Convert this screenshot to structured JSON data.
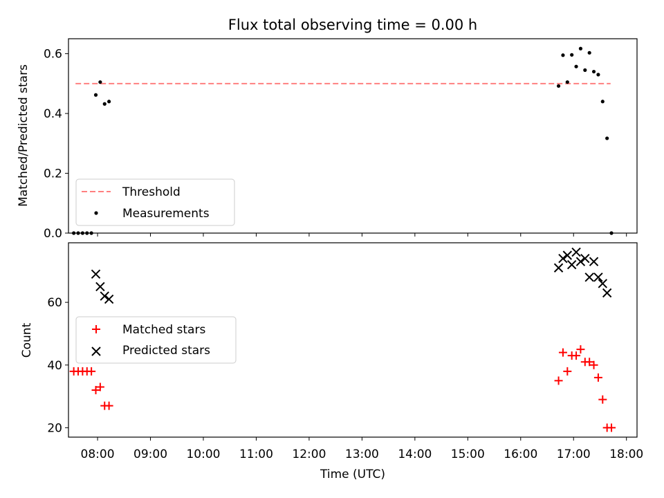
{
  "chart_data": [
    {
      "type": "scatter",
      "title": "Flux total observing time = 0.00 h",
      "xlabel": "",
      "ylabel": "Matched/Predicted stars",
      "ylim": [
        0,
        0.65
      ],
      "xlim": [
        "07:27",
        "18:12"
      ],
      "x_ticks": [
        "08:00",
        "09:00",
        "10:00",
        "11:00",
        "12:00",
        "13:00",
        "14:00",
        "15:00",
        "16:00",
        "17:00",
        "18:00"
      ],
      "y_ticks": [
        "0.0",
        "0.2",
        "0.4",
        "0.6"
      ],
      "y_tick_values": [
        0,
        0.2,
        0.4,
        0.6
      ],
      "legend_position": "lower-left",
      "series": [
        {
          "name": "Threshold",
          "style": "dashed-line",
          "color": "#ff7f7f",
          "x": [
            "07:35",
            "17:42"
          ],
          "y": [
            0.5,
            0.5
          ]
        },
        {
          "name": "Measurements",
          "style": "dot",
          "color": "#000000",
          "x": [
            "07:33",
            "07:38",
            "07:43",
            "07:48",
            "07:53",
            "07:58",
            "08:03",
            "08:08",
            "08:13",
            "16:43",
            "16:48",
            "16:53",
            "16:58",
            "17:03",
            "17:08",
            "17:13",
            "17:18",
            "17:23",
            "17:28",
            "17:33",
            "17:38",
            "17:43"
          ],
          "y": [
            0.0,
            0.0,
            0.0,
            0.0,
            0.0,
            0.462,
            0.505,
            0.432,
            0.44,
            0.492,
            0.595,
            0.505,
            0.596,
            0.557,
            0.617,
            0.545,
            0.603,
            0.54,
            0.53,
            0.44,
            0.317,
            0.0
          ]
        }
      ]
    },
    {
      "type": "scatter",
      "title": "",
      "xlabel": "Time (UTC)",
      "ylabel": "Count",
      "ylim": [
        17,
        79
      ],
      "xlim": [
        "07:27",
        "18:12"
      ],
      "x_ticks": [
        "08:00",
        "09:00",
        "10:00",
        "11:00",
        "12:00",
        "13:00",
        "14:00",
        "15:00",
        "16:00",
        "17:00",
        "18:00"
      ],
      "y_ticks": [
        "20",
        "40",
        "60"
      ],
      "y_tick_values": [
        20,
        40,
        60
      ],
      "legend_position": "center-left",
      "series": [
        {
          "name": "Matched stars",
          "style": "plus",
          "color": "#ff0000",
          "x": [
            "07:33",
            "07:38",
            "07:43",
            "07:48",
            "07:53",
            "07:58",
            "08:03",
            "08:08",
            "08:13",
            "16:43",
            "16:48",
            "16:53",
            "16:58",
            "17:03",
            "17:08",
            "17:13",
            "17:18",
            "17:23",
            "17:28",
            "17:33",
            "17:38",
            "17:43"
          ],
          "y": [
            38,
            38,
            38,
            38,
            38,
            32,
            33,
            27,
            27,
            35,
            44,
            38,
            43,
            43,
            45,
            41,
            41,
            40,
            36,
            29,
            20,
            20
          ]
        },
        {
          "name": "Predicted stars",
          "style": "x",
          "color": "#000000",
          "x": [
            "07:58",
            "08:03",
            "08:08",
            "08:13",
            "16:43",
            "16:48",
            "16:53",
            "16:58",
            "17:03",
            "17:08",
            "17:13",
            "17:18",
            "17:23",
            "17:28",
            "17:33",
            "17:38"
          ],
          "y": [
            69,
            65,
            62,
            61,
            71,
            74,
            75,
            72,
            76,
            73,
            74,
            68,
            73,
            68,
            66,
            63
          ]
        }
      ]
    }
  ]
}
